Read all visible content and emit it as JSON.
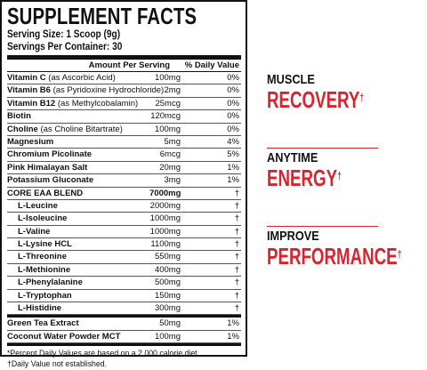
{
  "panel": {
    "title": "SUPPLEMENT FACTS",
    "serving_size": "Serving Size: 1 Scoop (9g)",
    "servings_per_container": "Servings Per Container: 30",
    "col_amount": "Amount Per Serving",
    "col_dv": "% Daily Value",
    "rows_a": [
      {
        "name": "Vitamin C",
        "suffix": " (as Ascorbic Acid)",
        "amount": "100mg",
        "dv": "0%"
      },
      {
        "name": "Vitamin B6",
        "suffix": " (as Pyridoxine Hydrochloride)",
        "amount": "2mg",
        "dv": "0%"
      },
      {
        "name": "Vitamin B12",
        "suffix": " (as Methylcobalamin)",
        "amount": "25mcg",
        "dv": "0%"
      },
      {
        "name": "Biotin",
        "suffix": "",
        "amount": "120mcg",
        "dv": "0%"
      },
      {
        "name": "Choline",
        "suffix": " (as Choline Bitartrate)",
        "amount": "100mg",
        "dv": "0%"
      },
      {
        "name": "Magnesium",
        "suffix": "",
        "amount": "5mg",
        "dv": "4%"
      },
      {
        "name": "Chromium Picolinate",
        "suffix": "",
        "amount": "6mcg",
        "dv": "5%"
      },
      {
        "name": "Pink Himalayan Salt",
        "suffix": "",
        "amount": "20mg",
        "dv": "1%"
      },
      {
        "name": "Potassium Gluconate",
        "suffix": "",
        "amount": "3mg",
        "dv": "1%"
      }
    ],
    "blend": {
      "name": "CORE EAA BLEND",
      "amount": "7000mg",
      "dv": "†"
    },
    "blend_items": [
      {
        "name": "L-Leucine",
        "amount": "2000mg",
        "dv": "†"
      },
      {
        "name": "L-Isoleucine",
        "amount": "1000mg",
        "dv": "†"
      },
      {
        "name": "L-Valine",
        "amount": "1000mg",
        "dv": "†"
      },
      {
        "name": "L-Lysine HCL",
        "amount": "1100mg",
        "dv": "†"
      },
      {
        "name": "L-Threonine",
        "amount": "550mg",
        "dv": "†"
      },
      {
        "name": "L-Methionine",
        "amount": "400mg",
        "dv": "†"
      },
      {
        "name": "L-Phenylalanine",
        "amount": "500mg",
        "dv": "†"
      },
      {
        "name": "L-Tryptophan",
        "amount": "150mg",
        "dv": "†"
      },
      {
        "name": "L-Histidine",
        "amount": "300mg",
        "dv": "†"
      }
    ],
    "rows_b": [
      {
        "name": "Green Tea Extract",
        "amount": "50mg",
        "dv": "1%"
      },
      {
        "name": "Coconut Water Powder MCT",
        "amount": "100mg",
        "dv": "1%"
      }
    ],
    "footnote_1": "*Percent Daily Values are based on a 2,000 calorie diet.",
    "footnote_2": "†Daily Value not established."
  },
  "claims": [
    {
      "kicker": "MUSCLE",
      "headline": "RECOVERY",
      "mark": "†"
    },
    {
      "kicker": "ANYTIME",
      "headline": "ENERGY",
      "mark": "†"
    },
    {
      "kicker": "IMPROVE",
      "headline": "PERFORMANCE",
      "mark": "†"
    }
  ],
  "colors": {
    "accent_red": "#d9232e",
    "ink": "#111111"
  }
}
